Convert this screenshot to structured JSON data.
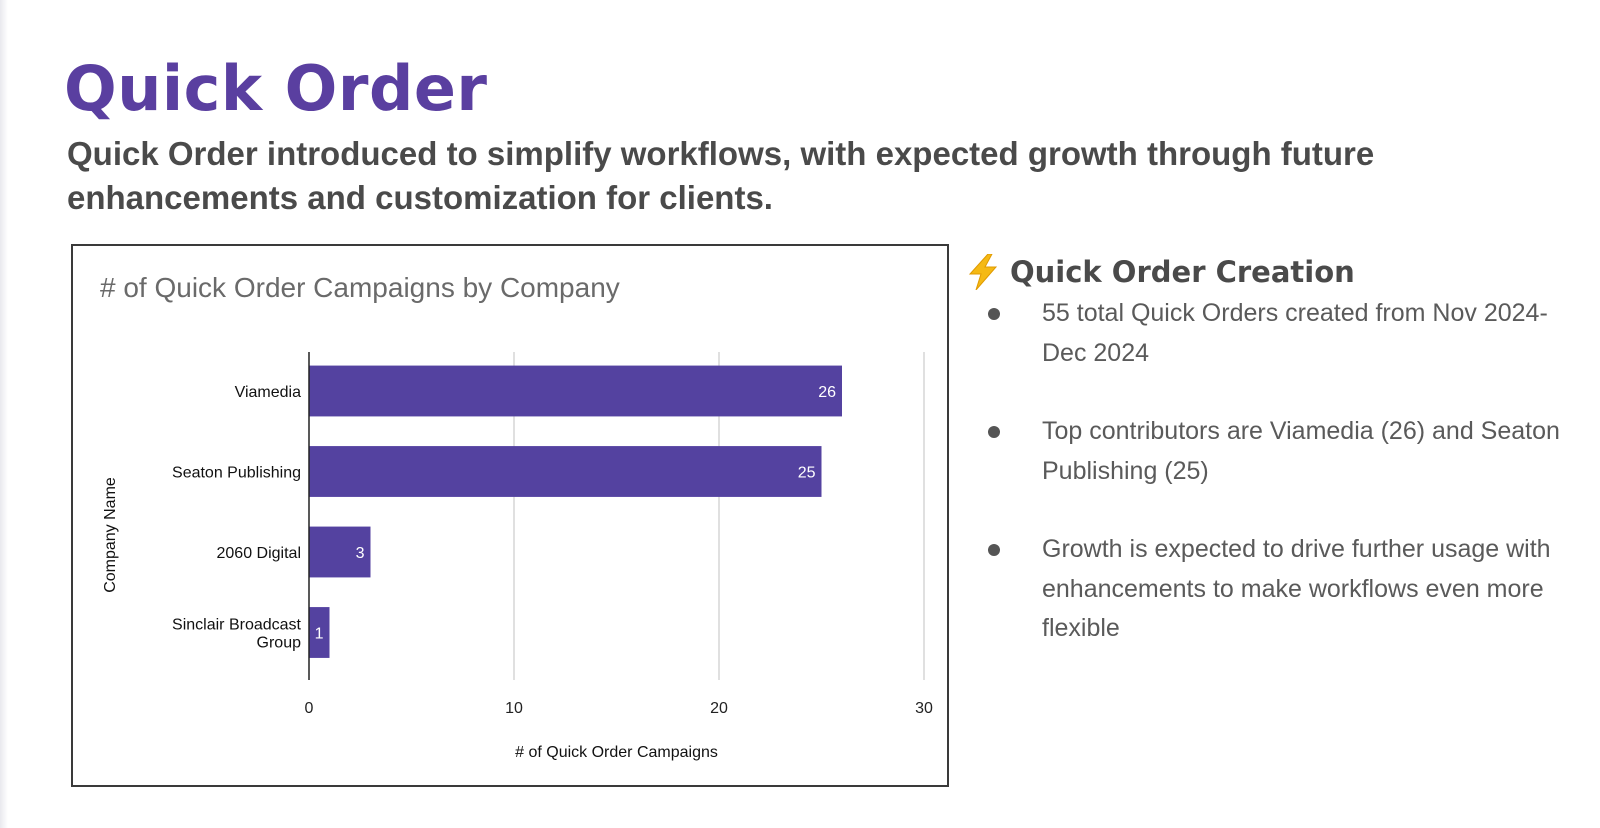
{
  "slide": {
    "title": "Quick Order",
    "subtitle": "Quick Order introduced to simplify workflows, with expected growth through future enhancements and customization for clients."
  },
  "side_panel": {
    "heading": "Quick Order Creation",
    "heading_icon": "lightning-bolt-icon",
    "bullets": [
      "55 total Quick Orders created from Nov 2024- Dec 2024",
      "Top contributors are Viamedia (26) and Seaton Publishing (25)",
      "Growth is expected to drive further usage with enhancements to make workflows even more flexible"
    ]
  },
  "chart_data": {
    "type": "bar",
    "orientation": "horizontal",
    "title": "# of Quick Order Campaigns by Company",
    "xlabel": "# of Quick Order Campaigns",
    "ylabel": "Company Name",
    "categories": [
      "Viamedia",
      "Seaton Publishing",
      "2060 Digital",
      "Sinclair Broadcast Group"
    ],
    "category_lines": [
      [
        "Viamedia"
      ],
      [
        "Seaton Publishing"
      ],
      [
        "2060 Digital"
      ],
      [
        "Sinclair Broadcast",
        "Group"
      ]
    ],
    "values": [
      26,
      25,
      3,
      1
    ],
    "xlim": [
      0,
      30
    ],
    "xticks": [
      0,
      10,
      20,
      30
    ],
    "grid": true,
    "data_labels": true,
    "bar_color": "#5442a0",
    "legend": "none"
  },
  "colors": {
    "title": "#5a3fa0",
    "text": "#4a4a4a",
    "bar": "#5442a0",
    "bolt": "#f5b914"
  }
}
